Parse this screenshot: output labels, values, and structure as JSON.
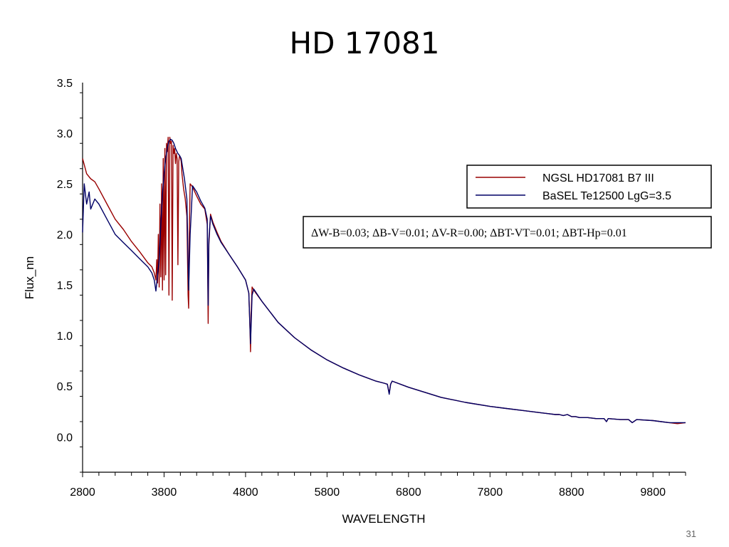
{
  "slide": {
    "title": "HD 17081",
    "page_number": "31"
  },
  "chart_data": {
    "type": "line",
    "title": "HD 17081",
    "xlabel": "WAVELENGTH",
    "ylabel": "Flux_nn",
    "xlim": [
      2800,
      10200
    ],
    "ylim": [
      -0.35,
      3.5
    ],
    "x_ticks": [
      "2800",
      "3800",
      "4800",
      "5800",
      "6800",
      "7800",
      "8800",
      "9800"
    ],
    "y_ticks": [
      "3.5",
      "3.0",
      "2.5",
      "2.0",
      "1.5",
      "1.0",
      "0.5",
      "0.0"
    ],
    "legend_placement": "top-right",
    "annotation": "ΔW-B=0.03; ΔB-V=0.01; ΔV-R=0.00; ΔBT-VT=0.01; ΔBT-Hp=0.01",
    "series": [
      {
        "name": "NGSL HD17081 B7 III",
        "color": "#990000",
        "x": [
          2800,
          2850,
          2900,
          2950,
          3000,
          3100,
          3200,
          3300,
          3400,
          3500,
          3600,
          3650,
          3680,
          3700,
          3710,
          3720,
          3730,
          3740,
          3750,
          3760,
          3770,
          3780,
          3790,
          3800,
          3810,
          3820,
          3830,
          3840,
          3850,
          3860,
          3870,
          3880,
          3890,
          3900,
          3910,
          3920,
          3930,
          3940,
          3950,
          3960,
          3970,
          3980,
          3990,
          4000,
          4010,
          4020,
          4040,
          4060,
          4080,
          4095,
          4102,
          4110,
          4120,
          4140,
          4160,
          4200,
          4250,
          4300,
          4330,
          4341,
          4350,
          4370,
          4400,
          4450,
          4500,
          4600,
          4700,
          4800,
          4840,
          4855,
          4861,
          4868,
          4880,
          4900,
          5000,
          5200,
          5400,
          5600,
          5800,
          6000,
          6200,
          6400,
          6500,
          6540,
          6563,
          6580,
          6600,
          6800,
          7000,
          7200,
          7500,
          7800,
          8000,
          8200,
          8400,
          8500,
          8600,
          8650,
          8700,
          8750,
          8800,
          8850,
          8900,
          9000,
          9100,
          9200,
          9229,
          9250,
          9400,
          9500,
          9546,
          9600,
          9800,
          9900,
          10000,
          10100,
          10200
        ],
        "y": [
          2.75,
          2.6,
          2.55,
          2.52,
          2.45,
          2.3,
          2.15,
          2.05,
          1.93,
          1.83,
          1.72,
          1.68,
          1.62,
          1.55,
          1.75,
          1.52,
          2.0,
          1.48,
          2.3,
          1.58,
          2.5,
          1.45,
          2.75,
          1.55,
          2.85,
          1.6,
          2.9,
          2.82,
          2.96,
          1.4,
          2.96,
          2.9,
          2.92,
          1.35,
          2.88,
          2.8,
          2.85,
          2.7,
          2.8,
          2.75,
          1.7,
          2.72,
          2.78,
          2.76,
          2.72,
          2.6,
          2.45,
          2.35,
          2.18,
          1.4,
          1.27,
          2.0,
          2.5,
          2.48,
          2.45,
          2.38,
          2.3,
          2.25,
          2.1,
          1.12,
          1.9,
          2.2,
          2.12,
          2.02,
          1.93,
          1.8,
          1.68,
          1.55,
          1.42,
          1.05,
          0.84,
          1.2,
          1.48,
          1.45,
          1.34,
          1.13,
          0.98,
          0.86,
          0.76,
          0.68,
          0.61,
          0.55,
          0.53,
          0.52,
          0.43,
          0.52,
          0.55,
          0.49,
          0.44,
          0.39,
          0.34,
          0.3,
          0.28,
          0.26,
          0.24,
          0.23,
          0.22,
          0.22,
          0.21,
          0.22,
          0.2,
          0.2,
          0.19,
          0.19,
          0.18,
          0.18,
          0.15,
          0.18,
          0.17,
          0.17,
          0.14,
          0.17,
          0.16,
          0.15,
          0.14,
          0.13,
          0.14
        ]
      },
      {
        "name": "BaSEL Te12500 LgG=3.5",
        "color": "#000066",
        "x": [
          2800,
          2820,
          2850,
          2880,
          2900,
          2950,
          3000,
          3100,
          3200,
          3300,
          3400,
          3500,
          3600,
          3650,
          3680,
          3700,
          3720,
          3740,
          3760,
          3780,
          3800,
          3820,
          3840,
          3860,
          3880,
          3900,
          3920,
          3940,
          3970,
          3990,
          4010,
          4050,
          4080,
          4102,
          4120,
          4150,
          4200,
          4250,
          4300,
          4330,
          4341,
          4350,
          4370,
          4400,
          4450,
          4500,
          4600,
          4700,
          4800,
          4840,
          4861,
          4880,
          4900,
          5000,
          5200,
          5400,
          5600,
          5800,
          6000,
          6200,
          6400,
          6500,
          6540,
          6563,
          6580,
          6600,
          6800,
          7000,
          7200,
          7500,
          7800,
          8000,
          8200,
          8400,
          8500,
          8600,
          8650,
          8700,
          8750,
          8800,
          8850,
          8900,
          9000,
          9100,
          9200,
          9229,
          9250,
          9400,
          9500,
          9546,
          9600,
          9800,
          9900,
          10000,
          10100,
          10200
        ],
        "y": [
          2.02,
          2.5,
          2.3,
          2.42,
          2.25,
          2.35,
          2.3,
          2.15,
          2.0,
          1.92,
          1.84,
          1.76,
          1.68,
          1.62,
          1.55,
          1.44,
          1.6,
          1.75,
          2.1,
          2.4,
          2.6,
          2.75,
          2.85,
          2.92,
          2.94,
          2.93,
          2.9,
          2.85,
          2.8,
          2.78,
          2.75,
          2.55,
          2.35,
          1.45,
          2.0,
          2.48,
          2.42,
          2.33,
          2.26,
          2.15,
          1.3,
          1.95,
          2.18,
          2.1,
          2.0,
          1.92,
          1.8,
          1.68,
          1.55,
          1.42,
          0.92,
          1.4,
          1.46,
          1.34,
          1.13,
          0.98,
          0.86,
          0.76,
          0.68,
          0.61,
          0.55,
          0.53,
          0.52,
          0.42,
          0.52,
          0.55,
          0.49,
          0.44,
          0.39,
          0.34,
          0.3,
          0.28,
          0.26,
          0.24,
          0.23,
          0.22,
          0.22,
          0.21,
          0.22,
          0.2,
          0.2,
          0.19,
          0.19,
          0.18,
          0.18,
          0.15,
          0.18,
          0.17,
          0.17,
          0.14,
          0.17,
          0.16,
          0.15,
          0.14,
          0.14,
          0.14
        ]
      }
    ]
  }
}
